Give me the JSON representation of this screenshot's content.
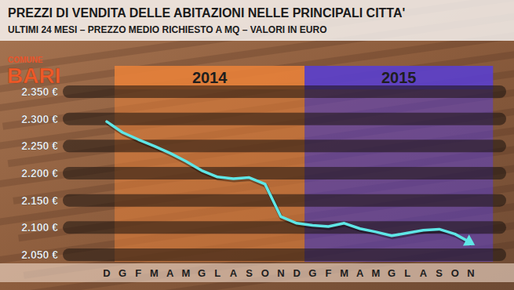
{
  "chart_data": {
    "type": "line",
    "title": "PREZZI DI VENDITA DELLE ABITAZIONI NELLE PRINCIPALI CITTA'",
    "subtitle": "ULTIMI 24 MESI – PREZZO MEDIO RICHIESTO A MQ – VALORI IN EURO",
    "annotations": {
      "place_label": "COMUNE",
      "place": "BARI",
      "periods": [
        {
          "label": "2014",
          "from": 1,
          "to": 12,
          "color": "#e8823a"
        },
        {
          "label": "2015",
          "from": 13,
          "to": 23,
          "color": "#5a3fd0"
        }
      ]
    },
    "categories": [
      "D",
      "G",
      "F",
      "M",
      "A",
      "M",
      "G",
      "L",
      "A",
      "S",
      "O",
      "N",
      "D",
      "G",
      "F",
      "M",
      "A",
      "M",
      "G",
      "L",
      "A",
      "S",
      "O",
      "N"
    ],
    "values": [
      2295,
      2275,
      2262,
      2250,
      2237,
      2222,
      2205,
      2193,
      2190,
      2192,
      2180,
      2120,
      2108,
      2104,
      2102,
      2108,
      2098,
      2092,
      2085,
      2090,
      2095,
      2097,
      2088,
      2072
    ],
    "color": "#5fe6e6",
    "ylim": [
      2050,
      2350
    ],
    "yticks": [
      {
        "value": 2050,
        "label": "2.050 €"
      },
      {
        "value": 2100,
        "label": "2.100 €"
      },
      {
        "value": 2150,
        "label": "2.150 €"
      },
      {
        "value": 2200,
        "label": "2.200 €"
      },
      {
        "value": 2250,
        "label": "2.250 €"
      },
      {
        "value": 2300,
        "label": "2.300 €"
      },
      {
        "value": 2350,
        "label": "2.350 €"
      }
    ],
    "grid": true
  }
}
